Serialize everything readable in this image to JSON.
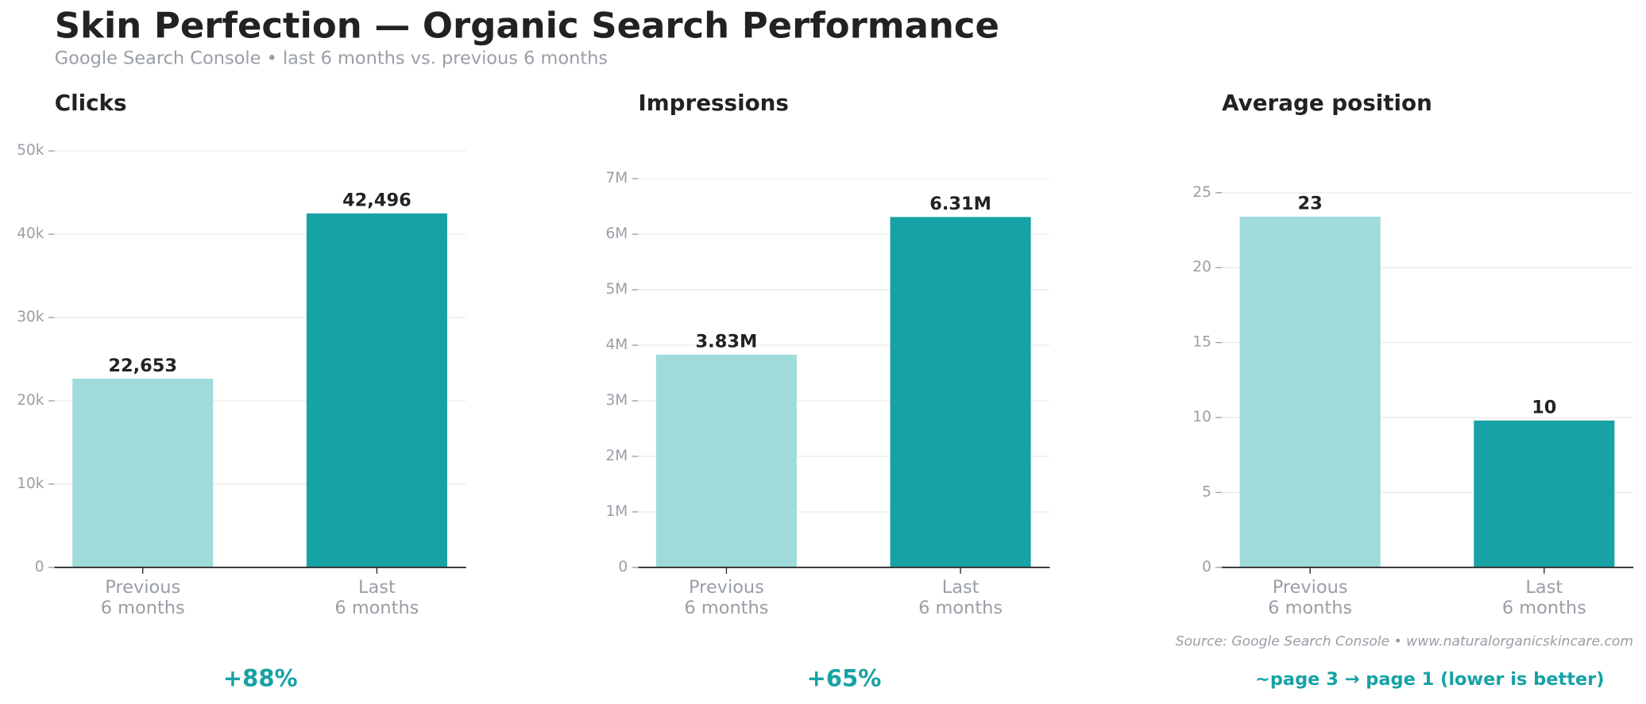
{
  "title": "Skin Perfection — Organic Search Performance",
  "subtitle": "Google Search Console  •  last 6 months vs. previous 6 months",
  "source": "Source: Google Search Console  •  www.naturalorganicskincare.com",
  "chart_data": [
    {
      "type": "bar",
      "title": "Clicks",
      "categories": [
        "Previous\n6 months",
        "Last\n6 months"
      ],
      "values": [
        22653,
        42496
      ],
      "value_labels": [
        "22,653",
        "42,496"
      ],
      "colors": [
        "#9fdbda",
        "#17a2a5"
      ],
      "ylim": [
        0,
        52000
      ],
      "yticks": [
        0,
        {
          "value": 10000,
          "label": "10k"
        },
        {
          "value": 20000,
          "label": "20k"
        },
        {
          "value": 30000,
          "label": "30k"
        },
        {
          "value": 40000,
          "label": "40k"
        },
        {
          "value": 50000,
          "label": "50k"
        }
      ],
      "grid": true,
      "annotation": "+88%"
    },
    {
      "type": "bar",
      "title": "Impressions",
      "categories": [
        "Previous\n6 months",
        "Last\n6 months"
      ],
      "values": [
        3830000,
        6310000
      ],
      "value_labels": [
        "3.83M",
        "6.31M"
      ],
      "colors": [
        "#9fdbda",
        "#17a2a5"
      ],
      "ylim": [
        0,
        7800000
      ],
      "yticks": [
        0,
        {
          "value": 1000000,
          "label": "1M"
        },
        {
          "value": 2000000,
          "label": "2M"
        },
        {
          "value": 3000000,
          "label": "3M"
        },
        {
          "value": 4000000,
          "label": "4M"
        },
        {
          "value": 5000000,
          "label": "5M"
        },
        {
          "value": 6000000,
          "label": "6M"
        },
        {
          "value": 7000000,
          "label": "7M"
        }
      ],
      "grid": true,
      "annotation": "+65%"
    },
    {
      "type": "bar",
      "title": "Average position",
      "categories": [
        "Previous\n6 months",
        "Last\n6 months"
      ],
      "values": [
        23.4,
        9.8
      ],
      "value_labels": [
        "23",
        "10"
      ],
      "colors": [
        "#9fdbda",
        "#17a2a5"
      ],
      "ylim": [
        0,
        28.9
      ],
      "yticks": [
        0,
        5,
        10,
        15,
        20,
        25
      ],
      "grid": true,
      "annotation": "~page 3 → page 1   (lower is better)"
    }
  ]
}
